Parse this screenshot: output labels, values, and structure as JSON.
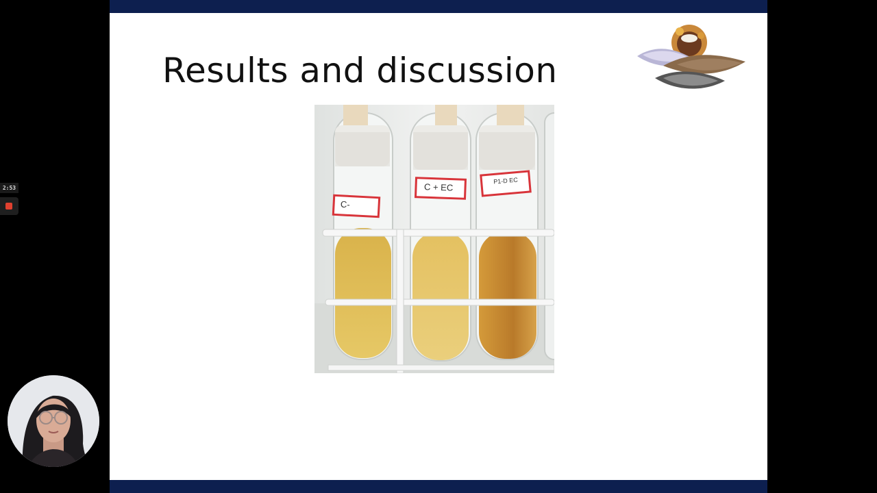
{
  "recording": {
    "elapsed": "2:53",
    "stop_icon": "stop-record-icon"
  },
  "slide": {
    "title": "Results and discussion",
    "logo_icon": "food-science-logo-icon",
    "figure": {
      "tube_labels": [
        "C-",
        "C + EC",
        "P1-D EC"
      ]
    }
  },
  "webcam": {
    "icon": "presenter-webcam"
  },
  "colors": {
    "slide_bar": "#0d1f4f",
    "background": "#000000",
    "rec_dot": "#e0402f"
  }
}
